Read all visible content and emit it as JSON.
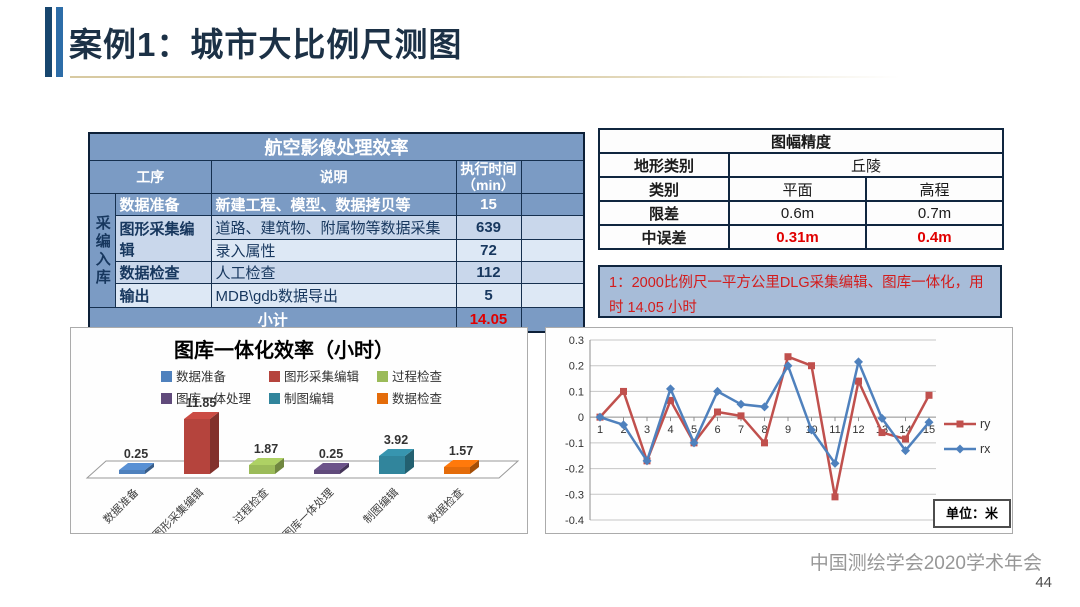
{
  "slide": {
    "title": "案例1：城市大比例尺测图",
    "footer": "中国测绘学会2020学术年会",
    "page_number": "44"
  },
  "colors": {
    "title_navy": "#1c3146",
    "table_header_blue": "#7b9bc4",
    "accuracy_header_orange": "#e8791e",
    "highlight_red": "#e00000",
    "note_background": "#a7bcd8",
    "series_red": "#c0504d",
    "series_blue": "#4f81bd"
  },
  "left_table": {
    "title": "航空影像处理效率",
    "headers": {
      "process": "工序",
      "description": "说明",
      "time_line1": "执行时间",
      "time_line2": "（min）"
    },
    "group_label": "采编入库",
    "rows": [
      {
        "process": "数据准备",
        "desc": "新建工程、模型、数据拷贝等",
        "time": "15"
      },
      {
        "process": "图形采集编辑",
        "desc": "道路、建筑物、附属物等数据采集",
        "time": "639"
      },
      {
        "process": "",
        "desc": "录入属性",
        "time": "72"
      },
      {
        "process": "数据检查",
        "desc": "人工检查",
        "time": "112"
      },
      {
        "process": "输出",
        "desc": "MDB\\gdb数据导出",
        "time": "5"
      }
    ],
    "subtotal_label": "小计",
    "subtotal_value": "14.05"
  },
  "right_table": {
    "title": "图幅精度",
    "terrain_label": "地形类别",
    "terrain_value": "丘陵",
    "rows": [
      {
        "label": "类别",
        "v1": "平面",
        "v2": "高程",
        "red": false
      },
      {
        "label": "限差",
        "v1": "0.6m",
        "v2": "0.7m",
        "red": false
      },
      {
        "label": "中误差",
        "v1": "0.31m",
        "v2": "0.4m",
        "red": true
      }
    ],
    "note": "1：2000比例尺一平方公里DLG采集编辑、图库一体化，用时 14.05 小时"
  },
  "chart_data": [
    {
      "type": "bar",
      "title": "图库一体化效率（小时）",
      "categories": [
        "数据准备",
        "图形采集编辑",
        "过程检查",
        "图库一体处理",
        "制图编辑",
        "数据检查"
      ],
      "values": [
        0.25,
        11.85,
        1.87,
        0.25,
        3.92,
        1.57
      ],
      "colors": [
        "#4f81bd",
        "#b5443d",
        "#9bbb59",
        "#604a7b",
        "#31859c",
        "#e46c0a"
      ],
      "legend_entries": [
        "数据准备",
        "图形采集编辑",
        "过程检查",
        "图库一体处理",
        "制图编辑",
        "数据检查"
      ],
      "legend_position": "top",
      "effect": "3d",
      "xlabel": "",
      "ylabel": "",
      "ylim": [
        0,
        12
      ],
      "grid": false
    },
    {
      "type": "line",
      "x": [
        1,
        2,
        3,
        4,
        5,
        6,
        7,
        8,
        9,
        10,
        11,
        12,
        13,
        14,
        15
      ],
      "series": [
        {
          "name": "ry",
          "color": "#c0504d",
          "marker": "square",
          "values": [
            0,
            0.1,
            -0.17,
            0.065,
            -0.1,
            0.02,
            0.005,
            -0.1,
            0.235,
            0.2,
            -0.31,
            0.14,
            -0.06,
            -0.085,
            0.085
          ]
        },
        {
          "name": "rx",
          "color": "#4f81bd",
          "marker": "diamond",
          "values": [
            0,
            -0.03,
            -0.17,
            0.11,
            -0.1,
            0.1,
            0.05,
            0.04,
            0.2,
            -0.05,
            -0.18,
            0.215,
            -0.005,
            -0.13,
            -0.02
          ]
        }
      ],
      "ylim": [
        -0.4,
        0.3
      ],
      "ytick_step": 0.1,
      "yticks": [
        "0.3",
        "0.2",
        "0.1",
        "0",
        "-0.1",
        "-0.2",
        "-0.3",
        "-0.4"
      ],
      "unit_label": "单位：米",
      "legend_position": "right",
      "grid": true
    }
  ]
}
